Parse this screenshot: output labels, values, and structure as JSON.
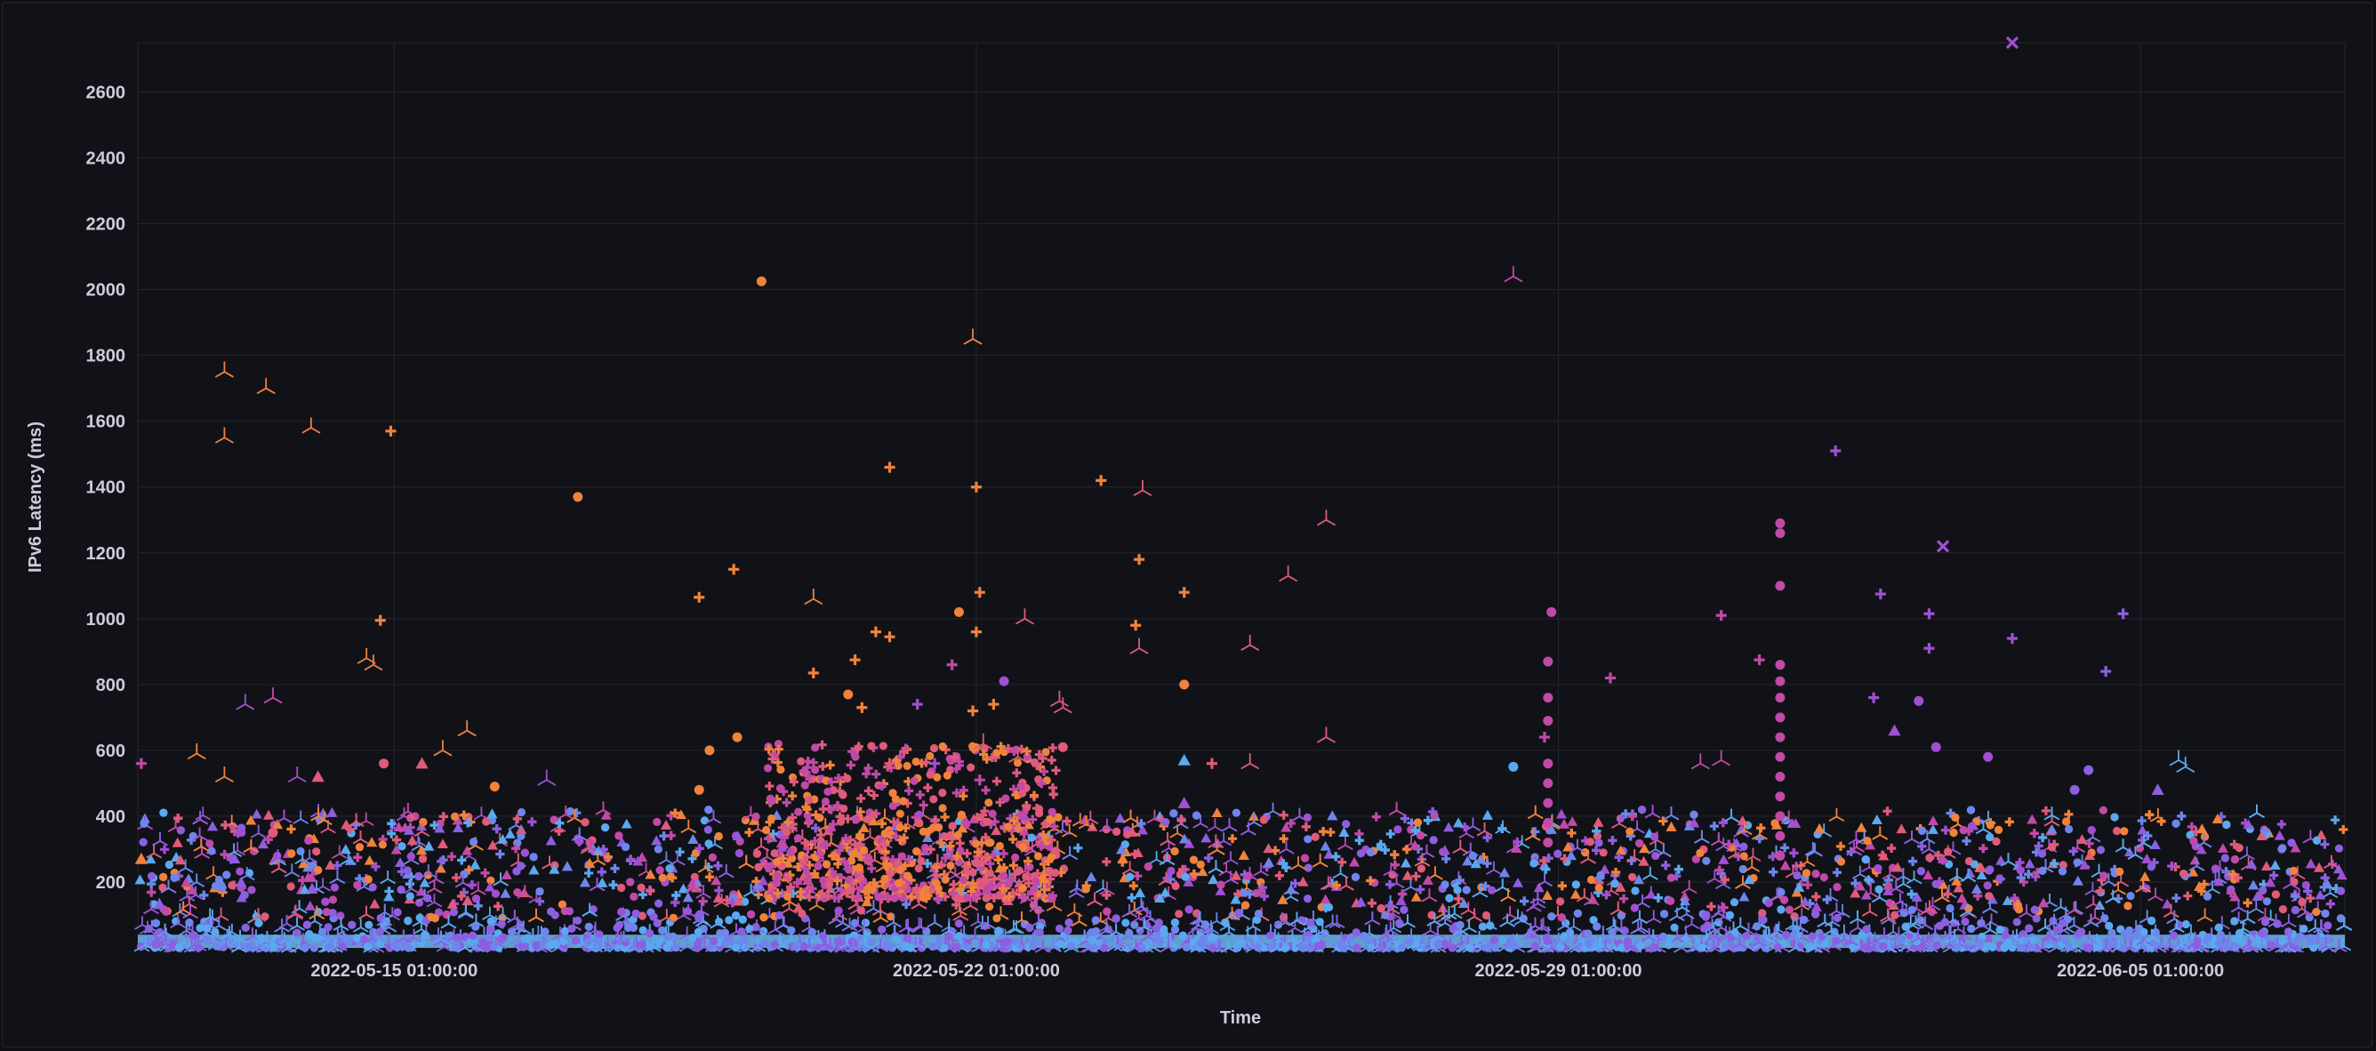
{
  "chart_data": {
    "type": "scatter",
    "title": "",
    "xlabel": "Time",
    "ylabel": "IPv6 Latency (ms)",
    "x_ticks": [
      "2022-05-15 01:00:00",
      "2022-05-22 01:00:00",
      "2022-05-29 01:00:00",
      "2022-06-05 01:00:00"
    ],
    "x_range_days": [
      "2022-05-11 23:00",
      "2022-06-07 12:00"
    ],
    "y_ticks": [
      200,
      400,
      600,
      800,
      1000,
      1200,
      1400,
      1600,
      1800,
      2000,
      2200,
      2400,
      2600
    ],
    "ylim": [
      0,
      2750
    ],
    "grid": true,
    "legend": "none",
    "palette": [
      "#f0823c",
      "#e05a7a",
      "#c149a8",
      "#a14fd2",
      "#8b5fe0",
      "#6e86ec",
      "#5aa9f0"
    ],
    "marker_shapes": [
      "circle",
      "triangle",
      "plus",
      "tri-down",
      "x"
    ],
    "series": [
      {
        "color": "#f0823c",
        "points": [
          {
            "x": "2022-05-13 00:00",
            "y": 1750,
            "m": "tri-down"
          },
          {
            "x": "2022-05-13 00:00",
            "y": 1550,
            "m": "tri-down"
          },
          {
            "x": "2022-05-13 12:00",
            "y": 1700,
            "m": "tri-down"
          },
          {
            "x": "2022-05-14 01:00",
            "y": 1580,
            "m": "tri-down"
          },
          {
            "x": "2022-05-14 17:00",
            "y": 880,
            "m": "tri-down"
          },
          {
            "x": "2022-05-14 19:00",
            "y": 860,
            "m": "tri-down"
          },
          {
            "x": "2022-05-15 00:00",
            "y": 1570,
            "m": "plus"
          },
          {
            "x": "2022-05-14 21:00",
            "y": 995,
            "m": "plus"
          },
          {
            "x": "2022-05-12 16:00",
            "y": 590,
            "m": "tri-down"
          },
          {
            "x": "2022-05-13 00:00",
            "y": 520,
            "m": "tri-down"
          },
          {
            "x": "2022-05-15 15:00",
            "y": 600,
            "m": "tri-down"
          },
          {
            "x": "2022-05-15 22:00",
            "y": 660,
            "m": "tri-down"
          },
          {
            "x": "2022-05-17 06:00",
            "y": 1370,
            "m": "circle"
          },
          {
            "x": "2022-05-19 11:00",
            "y": 2025,
            "m": "circle"
          },
          {
            "x": "2022-05-18 17:00",
            "y": 1065,
            "m": "plus"
          },
          {
            "x": "2022-05-19 03:00",
            "y": 1150,
            "m": "plus"
          },
          {
            "x": "2022-05-20 02:00",
            "y": 1060,
            "m": "tri-down"
          },
          {
            "x": "2022-05-20 02:00",
            "y": 835,
            "m": "plus"
          },
          {
            "x": "2022-05-20 14:00",
            "y": 875,
            "m": "plus"
          },
          {
            "x": "2022-05-21 00:00",
            "y": 1460,
            "m": "plus"
          },
          {
            "x": "2022-05-22 00:00",
            "y": 1850,
            "m": "tri-down"
          },
          {
            "x": "2022-05-22 01:00",
            "y": 1400,
            "m": "plus"
          },
          {
            "x": "2022-05-22 02:00",
            "y": 1080,
            "m": "plus"
          },
          {
            "x": "2022-05-21 20:00",
            "y": 1020,
            "m": "circle"
          },
          {
            "x": "2022-05-22 01:00",
            "y": 960,
            "m": "plus"
          },
          {
            "x": "2022-05-20 20:00",
            "y": 960,
            "m": "plus"
          },
          {
            "x": "2022-05-21 00:00",
            "y": 945,
            "m": "plus"
          },
          {
            "x": "2022-05-20 12:00",
            "y": 770,
            "m": "circle"
          },
          {
            "x": "2022-05-19 04:00",
            "y": 640,
            "m": "circle"
          },
          {
            "x": "2022-05-18 20:00",
            "y": 600,
            "m": "circle"
          },
          {
            "x": "2022-05-20 16:00",
            "y": 730,
            "m": "plus"
          },
          {
            "x": "2022-05-22 00:00",
            "y": 720,
            "m": "plus"
          },
          {
            "x": "2022-05-22 06:00",
            "y": 740,
            "m": "plus"
          },
          {
            "x": "2022-05-23 13:00",
            "y": 1420,
            "m": "plus"
          },
          {
            "x": "2022-05-24 00:00",
            "y": 1180,
            "m": "plus"
          },
          {
            "x": "2022-05-23 23:00",
            "y": 980,
            "m": "plus"
          },
          {
            "x": "2022-05-24 13:00",
            "y": 1080,
            "m": "plus"
          },
          {
            "x": "2022-05-24 13:00",
            "y": 800,
            "m": "circle"
          },
          {
            "x": "2022-05-18 17:00",
            "y": 480,
            "m": "circle"
          },
          {
            "x": "2022-05-16 06:00",
            "y": 490,
            "m": "circle"
          },
          {
            "x": "2022-05-12 00:00",
            "y": 270,
            "m": "triangle"
          }
        ]
      },
      {
        "color": "#e05a7a",
        "points": [
          {
            "x": "2022-05-15 09:00",
            "y": 560,
            "m": "triangle"
          },
          {
            "x": "2022-05-14 22:00",
            "y": 560,
            "m": "circle"
          },
          {
            "x": "2022-05-22 03:00",
            "y": 620,
            "m": "tri-down"
          },
          {
            "x": "2022-05-22 15:00",
            "y": 1000,
            "m": "tri-down"
          },
          {
            "x": "2022-05-23 02:00",
            "y": 730,
            "m": "tri-down"
          },
          {
            "x": "2022-05-23 02:00",
            "y": 610,
            "m": "circle"
          },
          {
            "x": "2022-05-22 13:00",
            "y": 580,
            "m": "tri-down"
          },
          {
            "x": "2022-05-21 00:00",
            "y": 560,
            "m": "plus"
          },
          {
            "x": "2022-05-24 01:00",
            "y": 1390,
            "m": "tri-down"
          },
          {
            "x": "2022-05-24 00:00",
            "y": 910,
            "m": "tri-down"
          },
          {
            "x": "2022-05-25 19:00",
            "y": 1130,
            "m": "tri-down"
          },
          {
            "x": "2022-05-26 06:00",
            "y": 1300,
            "m": "tri-down"
          },
          {
            "x": "2022-05-26 06:00",
            "y": 640,
            "m": "tri-down"
          },
          {
            "x": "2022-05-25 08:00",
            "y": 920,
            "m": "tri-down"
          },
          {
            "x": "2022-05-25 08:00",
            "y": 560,
            "m": "tri-down"
          },
          {
            "x": "2022-05-24 21:00",
            "y": 560,
            "m": "plus"
          },
          {
            "x": "2022-05-23 01:00",
            "y": 750,
            "m": "tri-down"
          },
          {
            "x": "2022-05-13 14:00",
            "y": 350,
            "m": "circle"
          },
          {
            "x": "2022-05-14 03:00",
            "y": 520,
            "m": "triangle"
          }
        ]
      },
      {
        "color": "#c149a8",
        "points": [
          {
            "x": "2022-05-28 12:00",
            "y": 2040,
            "m": "tri-down"
          },
          {
            "x": "2022-05-28 23:00",
            "y": 1020,
            "m": "circle"
          },
          {
            "x": "2022-05-28 22:00",
            "y": 870,
            "m": "circle"
          },
          {
            "x": "2022-05-28 22:00",
            "y": 760,
            "m": "circle"
          },
          {
            "x": "2022-05-28 22:00",
            "y": 690,
            "m": "circle"
          },
          {
            "x": "2022-05-28 21:00",
            "y": 640,
            "m": "plus"
          },
          {
            "x": "2022-05-28 22:00",
            "y": 560,
            "m": "circle"
          },
          {
            "x": "2022-05-28 22:00",
            "y": 500,
            "m": "circle"
          },
          {
            "x": "2022-05-28 22:00",
            "y": 440,
            "m": "circle"
          },
          {
            "x": "2022-05-28 22:00",
            "y": 380,
            "m": "circle"
          },
          {
            "x": "2022-05-28 22:00",
            "y": 320,
            "m": "circle"
          },
          {
            "x": "2022-05-29 16:00",
            "y": 820,
            "m": "plus"
          },
          {
            "x": "2022-05-31 00:00",
            "y": 1010,
            "m": "plus"
          },
          {
            "x": "2022-05-31 11:00",
            "y": 875,
            "m": "plus"
          },
          {
            "x": "2022-05-31 17:00",
            "y": 1290,
            "m": "circle"
          },
          {
            "x": "2022-05-31 17:00",
            "y": 1260,
            "m": "circle"
          },
          {
            "x": "2022-05-31 17:00",
            "y": 1100,
            "m": "circle"
          },
          {
            "x": "2022-05-31 17:00",
            "y": 860,
            "m": "circle"
          },
          {
            "x": "2022-05-31 17:00",
            "y": 810,
            "m": "circle"
          },
          {
            "x": "2022-05-31 17:00",
            "y": 760,
            "m": "circle"
          },
          {
            "x": "2022-05-31 17:00",
            "y": 700,
            "m": "circle"
          },
          {
            "x": "2022-05-31 17:00",
            "y": 640,
            "m": "circle"
          },
          {
            "x": "2022-05-31 17:00",
            "y": 580,
            "m": "circle"
          },
          {
            "x": "2022-05-31 17:00",
            "y": 520,
            "m": "circle"
          },
          {
            "x": "2022-05-31 17:00",
            "y": 460,
            "m": "circle"
          },
          {
            "x": "2022-05-31 17:00",
            "y": 400,
            "m": "circle"
          },
          {
            "x": "2022-05-31 17:00",
            "y": 340,
            "m": "circle"
          },
          {
            "x": "2022-05-31 17:00",
            "y": 280,
            "m": "circle"
          },
          {
            "x": "2022-05-30 18:00",
            "y": 560,
            "m": "tri-down"
          },
          {
            "x": "2022-05-31 00:00",
            "y": 570,
            "m": "tri-down"
          },
          {
            "x": "2022-05-22 02:00",
            "y": 510,
            "m": "plus"
          },
          {
            "x": "2022-05-21 18:00",
            "y": 860,
            "m": "plus"
          },
          {
            "x": "2022-05-13 14:00",
            "y": 760,
            "m": "tri-down"
          },
          {
            "x": "2022-05-12 00:00",
            "y": 560,
            "m": "plus"
          }
        ]
      },
      {
        "color": "#a14fd2",
        "points": [
          {
            "x": "2022-06-03 12:00",
            "y": 2750,
            "m": "x"
          },
          {
            "x": "2022-06-02 16:00",
            "y": 1220,
            "m": "x"
          },
          {
            "x": "2022-06-01 09:00",
            "y": 1510,
            "m": "plus"
          },
          {
            "x": "2022-06-01 22:00",
            "y": 1075,
            "m": "plus"
          },
          {
            "x": "2022-06-02 12:00",
            "y": 1015,
            "m": "plus"
          },
          {
            "x": "2022-06-02 12:00",
            "y": 910,
            "m": "plus"
          },
          {
            "x": "2022-06-03 12:00",
            "y": 940,
            "m": "plus"
          },
          {
            "x": "2022-06-01 20:00",
            "y": 760,
            "m": "plus"
          },
          {
            "x": "2022-06-02 09:00",
            "y": 750,
            "m": "circle"
          },
          {
            "x": "2022-06-02 02:00",
            "y": 660,
            "m": "triangle"
          },
          {
            "x": "2022-06-02 14:00",
            "y": 610,
            "m": "circle"
          },
          {
            "x": "2022-06-03 05:00",
            "y": 580,
            "m": "circle"
          },
          {
            "x": "2022-05-22 09:00",
            "y": 810,
            "m": "circle"
          },
          {
            "x": "2022-05-21 08:00",
            "y": 740,
            "m": "plus"
          },
          {
            "x": "2022-05-13 06:00",
            "y": 740,
            "m": "tri-down"
          },
          {
            "x": "2022-05-13 21:00",
            "y": 520,
            "m": "tri-down"
          },
          {
            "x": "2022-05-16 21:00",
            "y": 510,
            "m": "tri-down"
          },
          {
            "x": "2022-05-24 13:00",
            "y": 440,
            "m": "triangle"
          },
          {
            "x": "2022-05-21 13:00",
            "y": 560,
            "m": "plus"
          }
        ]
      },
      {
        "color": "#8b5fe0",
        "points": [
          {
            "x": "2022-06-04 20:00",
            "y": 1015,
            "m": "plus"
          },
          {
            "x": "2022-06-04 15:00",
            "y": 840,
            "m": "plus"
          },
          {
            "x": "2022-06-04 10:00",
            "y": 540,
            "m": "circle"
          },
          {
            "x": "2022-06-04 06:00",
            "y": 480,
            "m": "circle"
          },
          {
            "x": "2022-06-05 06:00",
            "y": 480,
            "m": "triangle"
          }
        ]
      },
      {
        "color": "#5aa9f0",
        "points": [
          {
            "x": "2022-05-24 13:00",
            "y": 570,
            "m": "triangle"
          },
          {
            "x": "2022-05-28 12:00",
            "y": 550,
            "m": "circle"
          },
          {
            "x": "2022-06-05 12:00",
            "y": 570,
            "m": "tri-down"
          },
          {
            "x": "2022-06-05 14:00",
            "y": 550,
            "m": "tri-down"
          }
        ]
      }
    ]
  }
}
